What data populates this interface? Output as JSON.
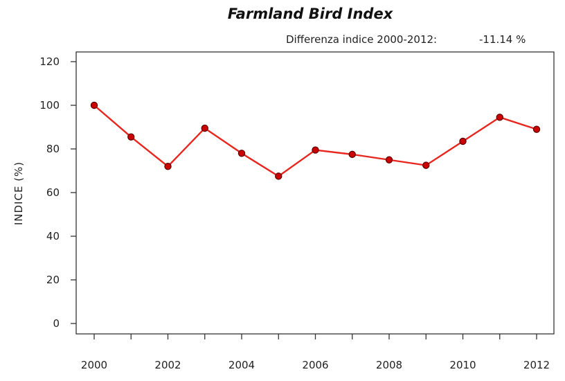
{
  "chart_data": {
    "type": "line",
    "title": "Farmland Bird Index",
    "subtitle_label": "Differenza indice 2000-2012:",
    "subtitle_value": "-11.14 %",
    "ylabel": "INDICE (%)",
    "xlabel": "",
    "x": [
      2000,
      2001,
      2002,
      2003,
      2004,
      2005,
      2006,
      2007,
      2008,
      2009,
      2010,
      2011,
      2012
    ],
    "series": [
      {
        "values": [
          100,
          85.5,
          72,
          89.5,
          78,
          67.5,
          79.5,
          77.5,
          75,
          72.5,
          83.5,
          94.5,
          89
        ],
        "color": "#e8261e",
        "marker_color": "#cc0000"
      }
    ],
    "xlim": [
      2000,
      2012
    ],
    "ylim": [
      0,
      120
    ],
    "yticks": [
      0,
      20,
      40,
      60,
      80,
      100,
      120
    ],
    "xticks_labeled": [
      2000,
      2002,
      2004,
      2006,
      2008,
      2010,
      2012
    ],
    "grid": false,
    "legend": "none"
  }
}
